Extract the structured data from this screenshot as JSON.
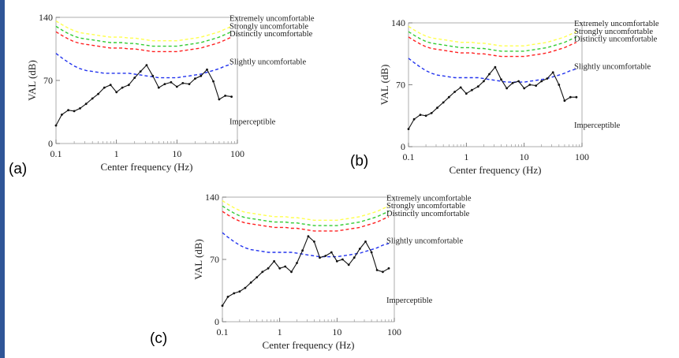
{
  "chart_data": [
    {
      "type": "line",
      "panel_label": "(a)",
      "xlabel": "Center frequency (Hz)",
      "ylabel": "VAL (dB)",
      "x_scale": "log",
      "xlim": [
        0.1,
        100
      ],
      "ylim": [
        0,
        140
      ],
      "x_ticks": [
        "0.1",
        "1",
        "10",
        "100"
      ],
      "y_ticks": [
        "0",
        "70",
        "140"
      ],
      "x": [
        0.1,
        0.125,
        0.16,
        0.2,
        0.25,
        0.315,
        0.4,
        0.5,
        0.63,
        0.8,
        1,
        1.25,
        1.6,
        2,
        2.5,
        3.15,
        4,
        5,
        6.3,
        8,
        10,
        12.5,
        16,
        20,
        25,
        31.5,
        40,
        50,
        63,
        80
      ],
      "comfort_levels": [
        {
          "label": "Extremely uncomfortable",
          "color": "#ffff4d",
          "y": [
            136,
            132,
            128,
            125,
            123,
            122,
            121,
            120,
            119,
            118,
            118,
            118,
            117,
            117,
            116,
            115,
            114,
            114,
            114,
            114,
            114,
            115,
            116,
            117,
            118,
            120,
            122,
            124,
            127,
            130
          ]
        },
        {
          "label": "Strongly uncomfortable",
          "color": "#33cc33",
          "y": [
            130,
            126,
            122,
            119,
            117,
            116,
            115,
            114,
            113,
            112,
            112,
            112,
            111,
            111,
            110,
            109,
            108,
            108,
            108,
            108,
            108,
            109,
            110,
            111,
            112,
            114,
            116,
            118,
            121,
            124
          ]
        },
        {
          "label": "Distinctly uncomfortable",
          "color": "#ff2020",
          "y": [
            124,
            120,
            116,
            113,
            111,
            110,
            109,
            108,
            107,
            106,
            106,
            106,
            105,
            105,
            104,
            103,
            102,
            102,
            102,
            102,
            102,
            103,
            104,
            105,
            106,
            108,
            110,
            112,
            115,
            118
          ]
        },
        {
          "label": "Slightly uncomfortable",
          "color": "#2233ee",
          "y": [
            100,
            95,
            90,
            86,
            83,
            81,
            80,
            79,
            78,
            78,
            78,
            78,
            78,
            77,
            76,
            75,
            74,
            73,
            73,
            73,
            73,
            74,
            75,
            76,
            77,
            79,
            81,
            83,
            86,
            88
          ]
        }
      ],
      "imperceptible_label": "Imperceptible",
      "series": [
        {
          "values": [
            20,
            32,
            37,
            36,
            39,
            44,
            50,
            55,
            62,
            65,
            57,
            62,
            65,
            73,
            80,
            87,
            75,
            62,
            66,
            68,
            63,
            67,
            66,
            72,
            75,
            82,
            69,
            49,
            53,
            52
          ]
        }
      ]
    },
    {
      "type": "line",
      "panel_label": "(b)",
      "xlabel": "Center frequency (Hz)",
      "ylabel": "VAL (dB)",
      "x_scale": "log",
      "xlim": [
        0.1,
        100
      ],
      "ylim": [
        0,
        140
      ],
      "x_ticks": [
        "0.1",
        "1",
        "10",
        "100"
      ],
      "y_ticks": [
        "0",
        "70",
        "140"
      ],
      "x": [
        0.1,
        0.125,
        0.16,
        0.2,
        0.25,
        0.315,
        0.4,
        0.5,
        0.63,
        0.8,
        1,
        1.25,
        1.6,
        2,
        2.5,
        3.15,
        4,
        5,
        6.3,
        8,
        10,
        12.5,
        16,
        20,
        25,
        31.5,
        40,
        50,
        63,
        80
      ],
      "comfort_levels": [
        {
          "label": "Extremely uncomfortable",
          "color": "#ffff4d",
          "y": [
            136,
            132,
            128,
            125,
            123,
            122,
            121,
            120,
            119,
            118,
            118,
            118,
            117,
            117,
            116,
            115,
            114,
            114,
            114,
            114,
            114,
            115,
            116,
            117,
            118,
            120,
            122,
            124,
            127,
            130
          ]
        },
        {
          "label": "Strongly uncomfortable",
          "color": "#33cc33",
          "y": [
            130,
            126,
            122,
            119,
            117,
            116,
            115,
            114,
            113,
            112,
            112,
            112,
            111,
            111,
            110,
            109,
            108,
            108,
            108,
            108,
            108,
            109,
            110,
            111,
            112,
            114,
            116,
            118,
            121,
            124
          ]
        },
        {
          "label": "Distinctly uncomfortable",
          "color": "#ff2020",
          "y": [
            124,
            120,
            116,
            113,
            111,
            110,
            109,
            108,
            107,
            106,
            106,
            106,
            105,
            105,
            104,
            103,
            102,
            102,
            102,
            102,
            102,
            103,
            104,
            105,
            106,
            108,
            110,
            112,
            115,
            118
          ]
        },
        {
          "label": "Slightly uncomfortable",
          "color": "#2233ee",
          "y": [
            100,
            95,
            90,
            86,
            83,
            81,
            80,
            79,
            78,
            78,
            78,
            78,
            78,
            77,
            76,
            75,
            74,
            73,
            73,
            73,
            73,
            74,
            75,
            76,
            77,
            79,
            81,
            83,
            86,
            88
          ]
        }
      ],
      "imperceptible_label": "Imperceptible",
      "series": [
        {
          "values": [
            20,
            31,
            36,
            35,
            38,
            44,
            50,
            56,
            62,
            67,
            60,
            64,
            68,
            74,
            82,
            90,
            76,
            66,
            72,
            74,
            66,
            70,
            69,
            74,
            77,
            84,
            70,
            52,
            56,
            56
          ]
        }
      ]
    },
    {
      "type": "line",
      "panel_label": "(c)",
      "xlabel": "Center frequency (Hz)",
      "ylabel": "VAL (dB)",
      "x_scale": "log",
      "xlim": [
        0.1,
        100
      ],
      "ylim": [
        0,
        140
      ],
      "x_ticks": [
        "0.1",
        "1",
        "10",
        "100"
      ],
      "y_ticks": [
        "0",
        "70",
        "140"
      ],
      "x": [
        0.1,
        0.125,
        0.16,
        0.2,
        0.25,
        0.315,
        0.4,
        0.5,
        0.63,
        0.8,
        1,
        1.25,
        1.6,
        2,
        2.5,
        3.15,
        4,
        5,
        6.3,
        8,
        10,
        12.5,
        16,
        20,
        25,
        31.5,
        40,
        50,
        63,
        80
      ],
      "comfort_levels": [
        {
          "label": "Extremely uncomfortable",
          "color": "#ffff4d",
          "y": [
            136,
            132,
            128,
            125,
            123,
            122,
            121,
            120,
            119,
            118,
            118,
            118,
            117,
            117,
            116,
            115,
            114,
            114,
            114,
            114,
            114,
            115,
            116,
            117,
            118,
            120,
            122,
            124,
            127,
            130
          ]
        },
        {
          "label": "Strongly uncomfortable",
          "color": "#33cc33",
          "y": [
            130,
            126,
            122,
            119,
            117,
            116,
            115,
            114,
            113,
            112,
            112,
            112,
            111,
            111,
            110,
            109,
            108,
            108,
            108,
            108,
            108,
            109,
            110,
            111,
            112,
            114,
            116,
            118,
            121,
            124
          ]
        },
        {
          "label": "Distinctly uncomfortable",
          "color": "#ff2020",
          "y": [
            124,
            120,
            116,
            113,
            111,
            110,
            109,
            108,
            107,
            106,
            106,
            106,
            105,
            105,
            104,
            103,
            102,
            102,
            102,
            102,
            102,
            103,
            104,
            105,
            106,
            108,
            110,
            112,
            115,
            118
          ]
        },
        {
          "label": "Slightly uncomfortable",
          "color": "#2233ee",
          "y": [
            100,
            95,
            90,
            86,
            83,
            81,
            80,
            79,
            78,
            78,
            78,
            78,
            78,
            77,
            76,
            75,
            74,
            73,
            73,
            73,
            73,
            74,
            75,
            76,
            77,
            79,
            81,
            83,
            86,
            88
          ]
        }
      ],
      "imperceptible_label": "Imperceptible",
      "series": [
        {
          "values": [
            18,
            28,
            32,
            34,
            38,
            44,
            50,
            56,
            60,
            68,
            60,
            62,
            56,
            66,
            80,
            96,
            90,
            72,
            74,
            78,
            68,
            70,
            64,
            72,
            82,
            90,
            78,
            58,
            56,
            60
          ]
        }
      ]
    }
  ]
}
